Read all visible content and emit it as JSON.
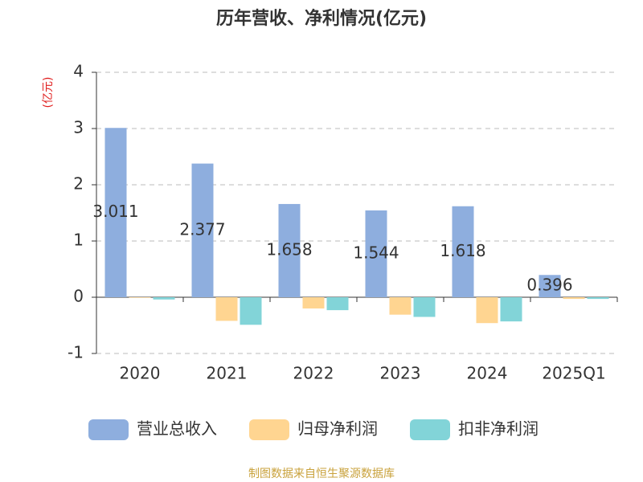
{
  "chart_data": {
    "type": "bar",
    "title": "历年营收、净利情况(亿元)",
    "y_axis_label": "(亿元)",
    "source": "制图数据来自恒生聚源数据库",
    "categories": [
      "2020",
      "2021",
      "2022",
      "2023",
      "2024",
      "2025Q1"
    ],
    "series": [
      {
        "name": "营业总收入",
        "color": "#8eaede",
        "values": [
          3.011,
          2.377,
          1.658,
          1.544,
          1.618,
          0.396
        ],
        "show_labels": true
      },
      {
        "name": "归母净利润",
        "color": "#ffd591",
        "values": [
          -0.01,
          -0.42,
          -0.2,
          -0.31,
          -0.46,
          -0.03
        ]
      },
      {
        "name": "扣非净利润",
        "color": "#82d4d8",
        "values": [
          -0.04,
          -0.49,
          -0.23,
          -0.35,
          -0.43,
          -0.03
        ]
      }
    ],
    "ylim": [
      -1,
      4
    ],
    "yticks": [
      -1,
      0,
      1,
      2,
      3,
      4
    ],
    "grid": true
  }
}
